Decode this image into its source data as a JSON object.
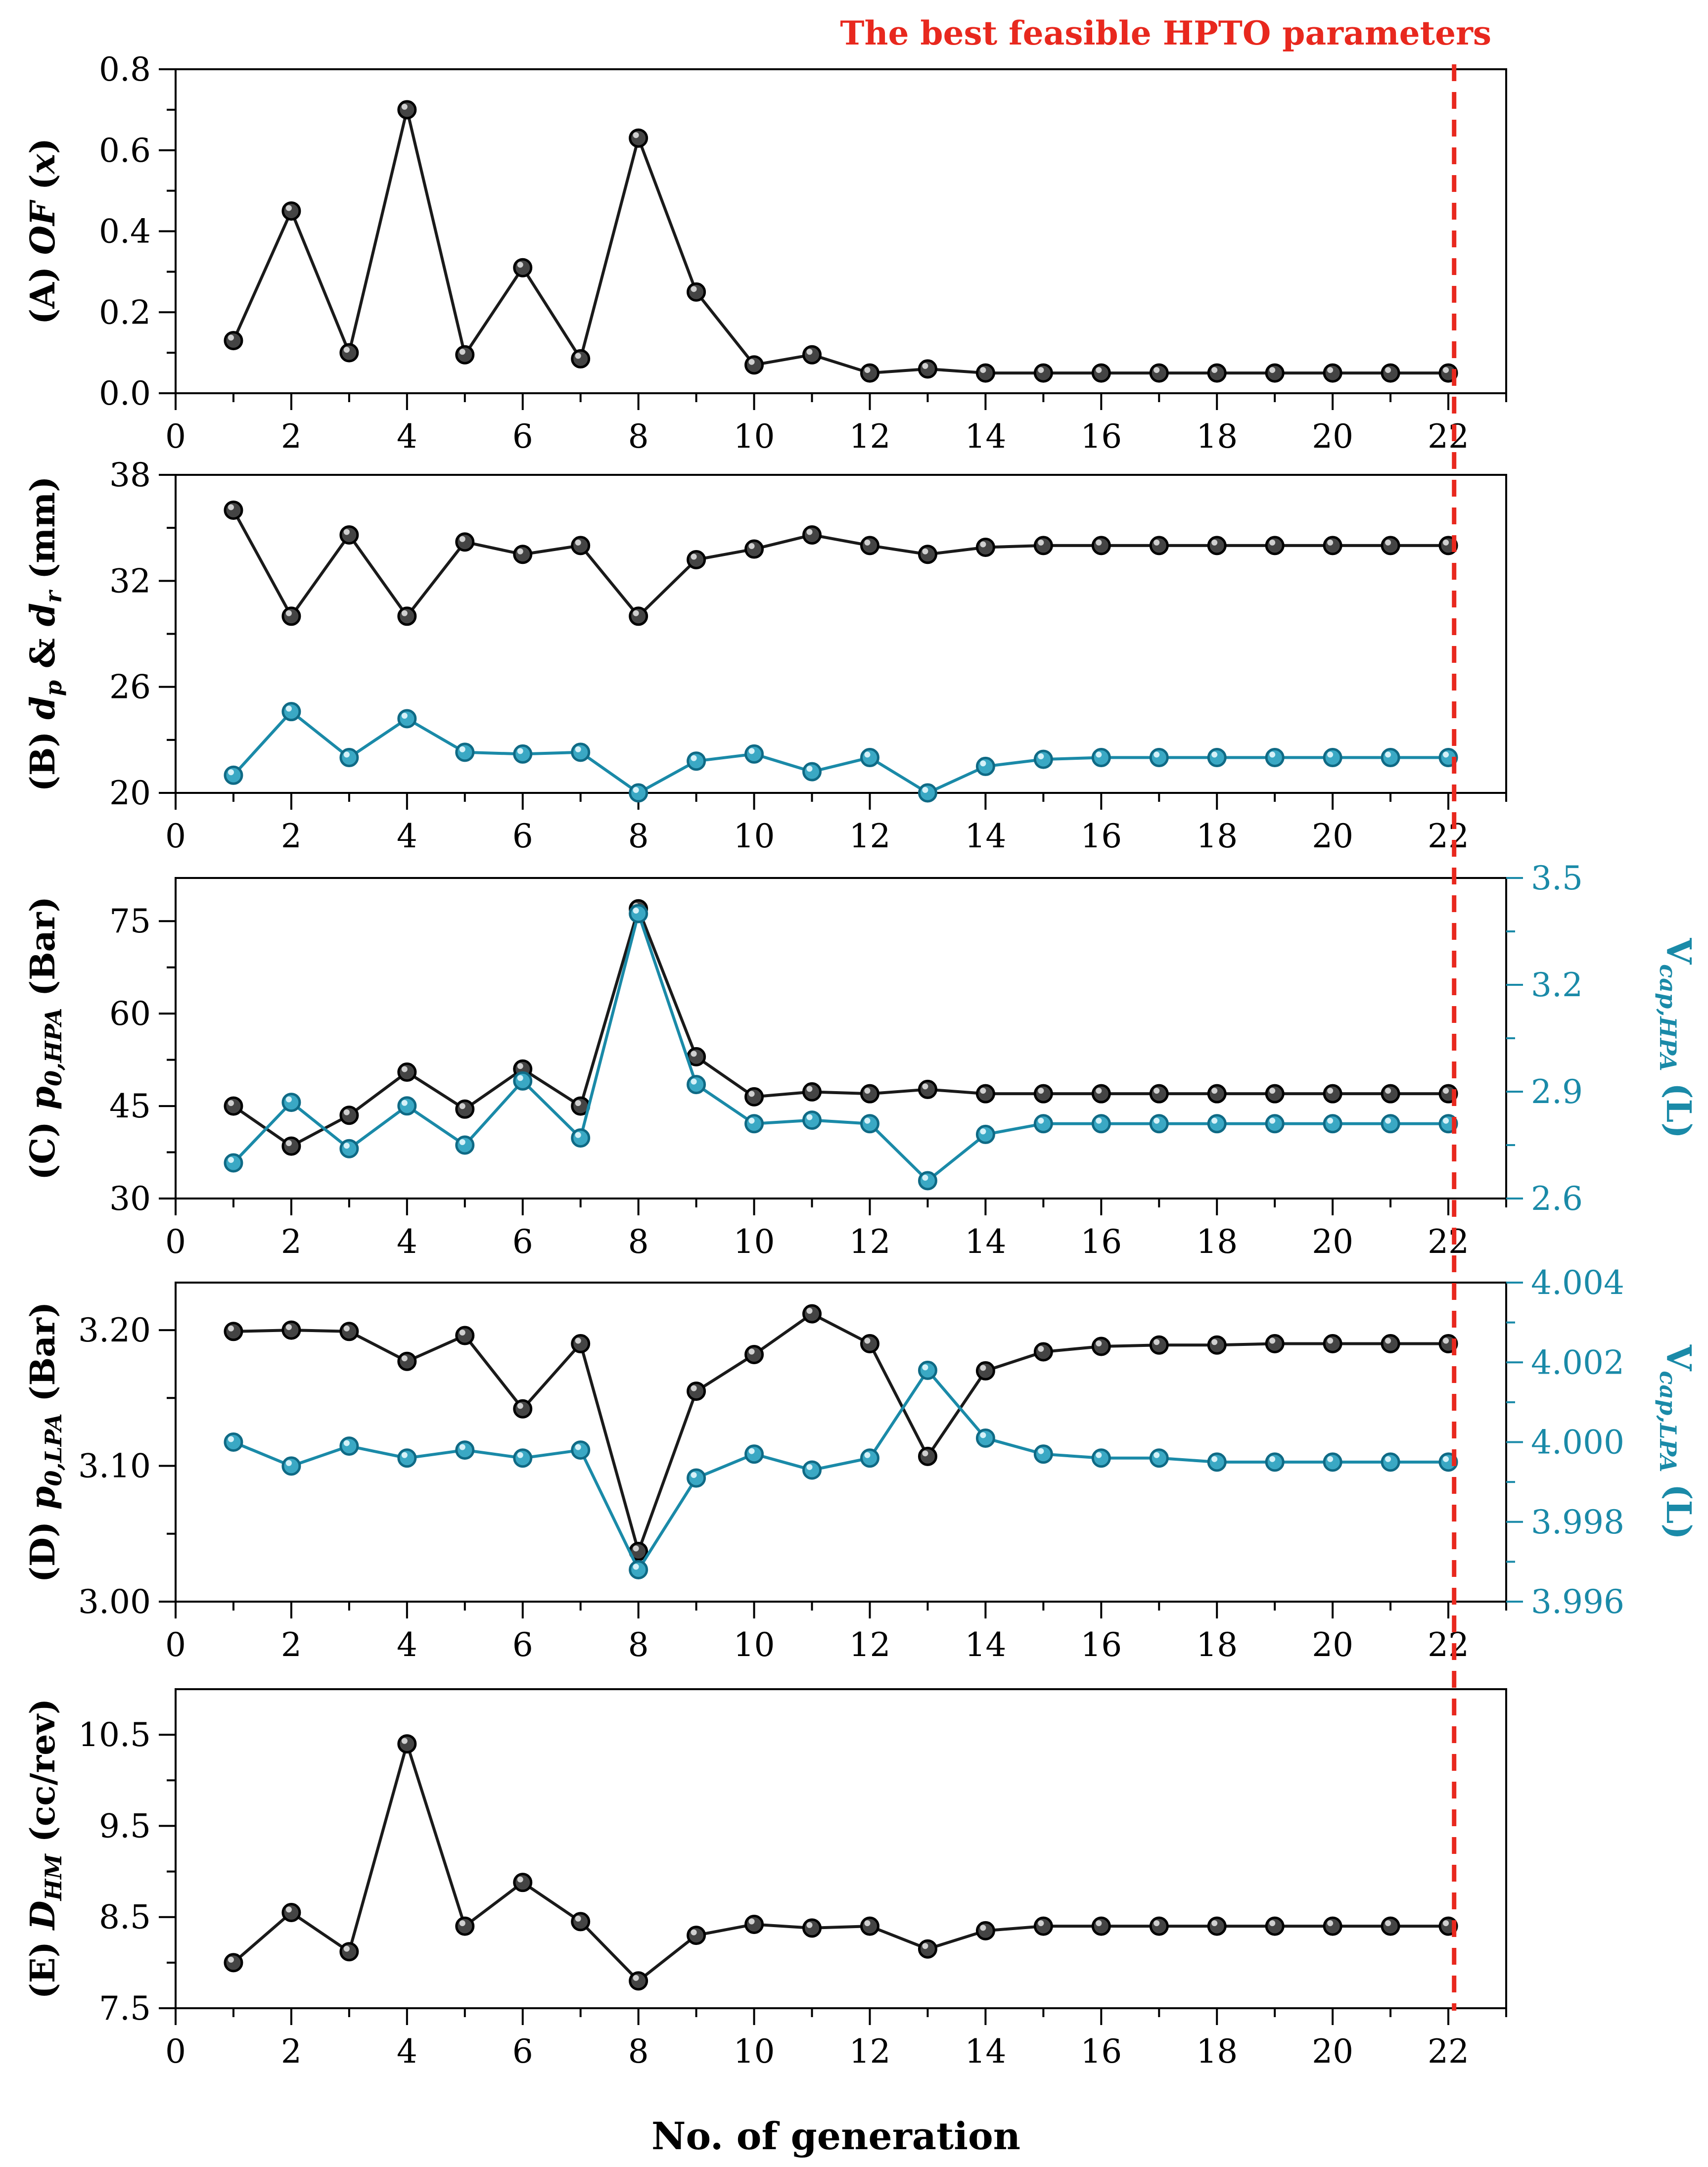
{
  "annotation": "The best feasible HPTO parameters",
  "colors": {
    "black_series": "#1a1a1a",
    "teal_series": "#1a8aa8",
    "marker_line": "#e8281e",
    "axis": "#000000"
  },
  "xlabel": "No. of generation",
  "chart_data": [
    {
      "type": "line",
      "panel": "A",
      "ylabel": "(A) OF (x)",
      "ylim": [
        0,
        0.8
      ],
      "yticks": [
        0.0,
        0.2,
        0.4,
        0.6,
        0.8
      ],
      "ytick_labels": [
        "0.0",
        "0.2",
        "0.4",
        "0.6",
        "0.8"
      ],
      "xlim": [
        0,
        23
      ],
      "xticks": [
        0,
        2,
        4,
        6,
        8,
        10,
        12,
        14,
        16,
        18,
        20,
        22
      ],
      "xtick_labels": [
        "0",
        "2",
        "4",
        "6",
        "8",
        "10",
        "12",
        "14",
        "16",
        "18",
        "20",
        "22"
      ],
      "x": [
        1,
        2,
        3,
        4,
        5,
        6,
        7,
        8,
        9,
        10,
        11,
        12,
        13,
        14,
        15,
        16,
        17,
        18,
        19,
        20,
        21,
        22
      ],
      "series": [
        {
          "color": "#1a1a1a",
          "axis": "left",
          "values": [
            0.13,
            0.45,
            0.1,
            0.7,
            0.095,
            0.31,
            0.085,
            0.63,
            0.25,
            0.07,
            0.095,
            0.05,
            0.06,
            0.05,
            0.05,
            0.05,
            0.05,
            0.05,
            0.05,
            0.05,
            0.05,
            0.05
          ]
        }
      ],
      "grid": false,
      "best_generation": 22.1
    },
    {
      "type": "line",
      "panel": "B",
      "ylabel": "(B) dp & dr (mm)",
      "ylim": [
        20,
        38
      ],
      "yticks": [
        20,
        26,
        32,
        38
      ],
      "ytick_labels": [
        "20",
        "26",
        "32",
        "38"
      ],
      "xlim": [
        0,
        23
      ],
      "xticks": [
        0,
        2,
        4,
        6,
        8,
        10,
        12,
        14,
        16,
        18,
        20,
        22
      ],
      "xtick_labels": [
        "0",
        "2",
        "4",
        "6",
        "8",
        "10",
        "12",
        "14",
        "16",
        "18",
        "20",
        "22"
      ],
      "x": [
        1,
        2,
        3,
        4,
        5,
        6,
        7,
        8,
        9,
        10,
        11,
        12,
        13,
        14,
        15,
        16,
        17,
        18,
        19,
        20,
        21,
        22
      ],
      "series": [
        {
          "color": "#1a1a1a",
          "axis": "left",
          "values": [
            36.0,
            30.0,
            34.6,
            30.0,
            34.2,
            33.5,
            34.0,
            30.0,
            33.2,
            33.8,
            34.6,
            34.0,
            33.5,
            33.9,
            34.0,
            34.0,
            34.0,
            34.0,
            34.0,
            34.0,
            34.0,
            34.0
          ]
        },
        {
          "color": "#1a8aa8",
          "axis": "left",
          "values": [
            21.0,
            24.6,
            22.0,
            24.2,
            22.3,
            22.2,
            22.3,
            20.0,
            21.8,
            22.2,
            21.2,
            22.0,
            20.0,
            21.5,
            21.9,
            22.0,
            22.0,
            22.0,
            22.0,
            22.0,
            22.0,
            22.0
          ]
        }
      ],
      "grid": false,
      "best_generation": 22.1
    },
    {
      "type": "line",
      "panel": "C",
      "ylabel": "(C) p0,HPA (Bar)",
      "ylabel_right": "Vcap,HPA (L)",
      "ylim": [
        30,
        82
      ],
      "yticks": [
        30,
        45,
        60,
        75
      ],
      "ytick_labels": [
        "30",
        "45",
        "60",
        "75"
      ],
      "ylim_right": [
        2.6,
        3.5
      ],
      "yticks_right": [
        2.6,
        2.9,
        3.2,
        3.5
      ],
      "ytick_labels_right": [
        "2.6",
        "2.9",
        "3.2",
        "3.5"
      ],
      "xlim": [
        0,
        23
      ],
      "xticks": [
        0,
        2,
        4,
        6,
        8,
        10,
        12,
        14,
        16,
        18,
        20,
        22
      ],
      "xtick_labels": [
        "0",
        "2",
        "4",
        "6",
        "8",
        "10",
        "12",
        "14",
        "16",
        "18",
        "20",
        "22"
      ],
      "x": [
        1,
        2,
        3,
        4,
        5,
        6,
        7,
        8,
        9,
        10,
        11,
        12,
        13,
        14,
        15,
        16,
        17,
        18,
        19,
        20,
        21,
        22
      ],
      "series": [
        {
          "color": "#1a1a1a",
          "axis": "left",
          "values": [
            45.0,
            38.5,
            43.5,
            50.5,
            44.5,
            51.0,
            45.0,
            77.0,
            53.0,
            46.5,
            47.3,
            47.0,
            47.7,
            47.0,
            47.0,
            47.0,
            47.0,
            47.0,
            47.0,
            47.0,
            47.0,
            47.0
          ]
        },
        {
          "color": "#1a8aa8",
          "axis": "right",
          "values": [
            2.7,
            2.87,
            2.74,
            2.86,
            2.75,
            2.93,
            2.77,
            3.4,
            2.92,
            2.81,
            2.82,
            2.81,
            2.65,
            2.78,
            2.81,
            2.81,
            2.81,
            2.81,
            2.81,
            2.81,
            2.81,
            2.81
          ]
        }
      ],
      "grid": false,
      "best_generation": 22.1
    },
    {
      "type": "line",
      "panel": "D",
      "ylabel": "(D) p0,LPA (Bar)",
      "ylabel_right": "Vcap,LPA (L)",
      "ylim": [
        3.0,
        3.235
      ],
      "yticks": [
        3.0,
        3.1,
        3.2
      ],
      "ytick_labels": [
        "3.00",
        "3.10",
        "3.20"
      ],
      "ylim_right": [
        3.996,
        4.004
      ],
      "yticks_right": [
        3.996,
        3.998,
        4.0,
        4.002,
        4.004
      ],
      "ytick_labels_right": [
        "3.996",
        "3.998",
        "4.000",
        "4.002",
        "4.004"
      ],
      "xlim": [
        0,
        23
      ],
      "xticks": [
        0,
        2,
        4,
        6,
        8,
        10,
        12,
        14,
        16,
        18,
        20,
        22
      ],
      "xtick_labels": [
        "0",
        "2",
        "4",
        "6",
        "8",
        "10",
        "12",
        "14",
        "16",
        "18",
        "20",
        "22"
      ],
      "x": [
        1,
        2,
        3,
        4,
        5,
        6,
        7,
        8,
        9,
        10,
        11,
        12,
        13,
        14,
        15,
        16,
        17,
        18,
        19,
        20,
        21,
        22
      ],
      "series": [
        {
          "color": "#1a1a1a",
          "axis": "left",
          "values": [
            3.199,
            3.2,
            3.199,
            3.177,
            3.196,
            3.142,
            3.19,
            3.037,
            3.155,
            3.182,
            3.212,
            3.19,
            3.107,
            3.17,
            3.184,
            3.188,
            3.189,
            3.189,
            3.19,
            3.19,
            3.19,
            3.19
          ]
        },
        {
          "color": "#1a8aa8",
          "axis": "right",
          "values": [
            4.0,
            3.9994,
            3.9999,
            3.9996,
            3.9998,
            3.9996,
            3.9998,
            3.9968,
            3.9991,
            3.9997,
            3.9993,
            3.9996,
            4.0018,
            4.0001,
            3.9997,
            3.9996,
            3.9996,
            3.9995,
            3.9995,
            3.9995,
            3.9995,
            3.9995
          ]
        }
      ],
      "grid": false,
      "best_generation": 22.1
    },
    {
      "type": "line",
      "panel": "E",
      "ylabel": "(E) DHM (cc/rev)",
      "ylim": [
        7.5,
        11.0
      ],
      "yticks": [
        7.5,
        8.5,
        9.5,
        10.5
      ],
      "ytick_labels": [
        "7.5",
        "8.5",
        "9.5",
        "10.5"
      ],
      "xlim": [
        0,
        23
      ],
      "xticks": [
        0,
        2,
        4,
        6,
        8,
        10,
        12,
        14,
        16,
        18,
        20,
        22
      ],
      "xtick_labels": [
        "0",
        "2",
        "4",
        "6",
        "8",
        "10",
        "12",
        "14",
        "16",
        "18",
        "20",
        "22"
      ],
      "x": [
        1,
        2,
        3,
        4,
        5,
        6,
        7,
        8,
        9,
        10,
        11,
        12,
        13,
        14,
        15,
        16,
        17,
        18,
        19,
        20,
        21,
        22
      ],
      "series": [
        {
          "color": "#1a1a1a",
          "axis": "left",
          "values": [
            8.0,
            8.55,
            8.12,
            10.4,
            8.4,
            8.88,
            8.45,
            7.8,
            8.3,
            8.42,
            8.38,
            8.4,
            8.15,
            8.35,
            8.4,
            8.4,
            8.4,
            8.4,
            8.4,
            8.4,
            8.4,
            8.4
          ]
        }
      ],
      "grid": false,
      "best_generation": 22.1
    }
  ]
}
